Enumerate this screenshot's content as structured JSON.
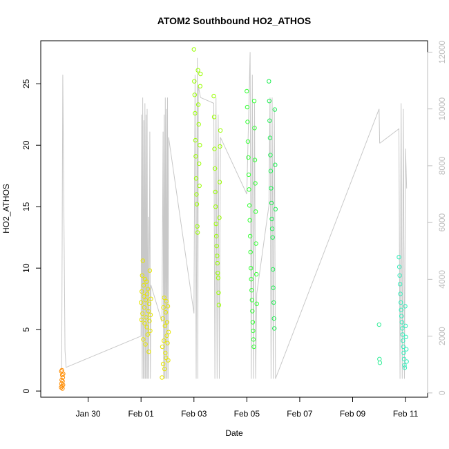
{
  "chart_data": {
    "type": "scatter",
    "title": "ATOM2 Southbound HO2_ATHOS",
    "xlabel": "Date",
    "ylabel": "HO2_ATHOS",
    "xlim": [
      "2016-01-28T05:00",
      "2016-02-11T20:00"
    ],
    "ylim": [
      -0.5,
      28.5
    ],
    "y2lim": [
      -150,
      12400
    ],
    "x_ticks": [
      {
        "label": "Jan 30",
        "date": "2016-01-30"
      },
      {
        "label": "Feb 01",
        "date": "2016-02-01"
      },
      {
        "label": "Feb 03",
        "date": "2016-02-03"
      },
      {
        "label": "Feb 05",
        "date": "2016-02-05"
      },
      {
        "label": "Feb 07",
        "date": "2016-02-07"
      },
      {
        "label": "Feb 09",
        "date": "2016-02-09"
      },
      {
        "label": "Feb 11",
        "date": "2016-02-11"
      }
    ],
    "y_ticks": [
      0,
      5,
      10,
      15,
      20,
      25
    ],
    "y2_ticks": [
      0,
      2000,
      4000,
      6000,
      8000,
      10000,
      12000
    ],
    "grid": false,
    "secondary_series": {
      "color": "#c8c8c8",
      "x": [
        "2016-01-29T00:00",
        "2016-01-29T01:00",
        "2016-01-29T03:00",
        "2016-01-29T04:00",
        "2016-02-01T00:00",
        "2016-02-01T00:30",
        "2016-02-01T01:00",
        "2016-02-01T01:30",
        "2016-02-01T02:00",
        "2016-02-01T02:30",
        "2016-02-01T03:00",
        "2016-02-01T03:30",
        "2016-02-01T04:00",
        "2016-02-01T04:30",
        "2016-02-01T05:00",
        "2016-02-01T05:30",
        "2016-02-01T06:00",
        "2016-02-01T06:30",
        "2016-02-01T07:00",
        "2016-02-01T08:00",
        "2016-02-01T08:30",
        "2016-02-01T09:00",
        "2016-02-01T19:00",
        "2016-02-01T20:00",
        "2016-02-01T20:30",
        "2016-02-01T21:00",
        "2016-02-01T21:30",
        "2016-02-01T22:00",
        "2016-02-01T22:30",
        "2016-02-01T23:00",
        "2016-02-01T23:30",
        "2016-02-02T00:00",
        "2016-02-02T00:30",
        "2016-02-02T01:00",
        "2016-02-03T00:00",
        "2016-02-03T01:00",
        "2016-02-03T02:00",
        "2016-02-03T03:00",
        "2016-02-03T03:30",
        "2016-02-03T04:00",
        "2016-02-03T06:00",
        "2016-02-03T18:00",
        "2016-02-03T19:00",
        "2016-02-03T20:00",
        "2016-02-03T21:00",
        "2016-02-03T22:00",
        "2016-02-03T23:00",
        "2016-02-04T00:00",
        "2016-02-05T00:00",
        "2016-02-05T03:00",
        "2016-02-05T04:00",
        "2016-02-05T05:00",
        "2016-02-05T06:00",
        "2016-02-05T07:00",
        "2016-02-05T08:00",
        "2016-02-05T09:00",
        "2016-02-05T20:00",
        "2016-02-05T21:00",
        "2016-02-05T22:00",
        "2016-02-05T23:00",
        "2016-02-06T00:00",
        "2016-02-06T01:00",
        "2016-02-06T02:00",
        "2016-02-10T00:00",
        "2016-02-10T00:30",
        "2016-02-10T01:00",
        "2016-02-10T18:00",
        "2016-02-10T19:00",
        "2016-02-10T20:00",
        "2016-02-10T21:00",
        "2016-02-10T22:00",
        "2016-02-10T23:00",
        "2016-02-11T00:00",
        "2016-02-11T01:00"
      ],
      "values": [
        800,
        11200,
        1500,
        900,
        2000,
        9800,
        500,
        10400,
        500,
        9600,
        500,
        10200,
        500,
        9800,
        500,
        10000,
        500,
        6200,
        500,
        9200,
        500,
        3800,
        2500,
        9200,
        500,
        9800,
        500,
        10400,
        500,
        10000,
        500,
        10400,
        500,
        9000,
        2800,
        11200,
        500,
        11800,
        500,
        10800,
        10400,
        10200,
        500,
        10400,
        500,
        9800,
        500,
        9000,
        7000,
        12000,
        500,
        11200,
        500,
        10200,
        500,
        3500,
        6600,
        10400,
        500,
        10400,
        500,
        10000,
        500,
        10000,
        8800,
        8800,
        9300,
        500,
        10200,
        500,
        10000,
        500,
        8600,
        7200
      ]
    },
    "series": [
      {
        "color": "#ff8c00",
        "x": [
          "2016-01-28T23:30",
          "2016-01-28T23:40",
          "2016-01-28T23:50",
          "2016-01-29T00:00",
          "2016-01-29T00:10",
          "2016-01-29T00:20",
          "2016-01-29T00:30",
          "2016-01-29T00:40",
          "2016-01-29T00:50",
          "2016-01-29T01:00",
          "2016-01-29T01:10",
          "2016-01-29T01:20"
        ],
        "values": [
          0.3,
          1.6,
          0.6,
          0.9,
          1.7,
          0.4,
          1.3,
          0.2,
          0.8,
          1.1,
          0.5,
          1.4
        ]
      },
      {
        "color": "#e6e600",
        "x": [
          "2016-02-01T00:00",
          "2016-02-01T00:20",
          "2016-02-01T00:40",
          "2016-02-01T01:00",
          "2016-02-01T01:20",
          "2016-02-01T01:40",
          "2016-02-01T02:00",
          "2016-02-01T02:20",
          "2016-02-01T02:40",
          "2016-02-01T03:00",
          "2016-02-01T03:20",
          "2016-02-01T03:40",
          "2016-02-01T04:00",
          "2016-02-01T04:20",
          "2016-02-01T04:40",
          "2016-02-01T05:00",
          "2016-02-01T05:20",
          "2016-02-01T05:40",
          "2016-02-01T06:00",
          "2016-02-01T06:20",
          "2016-02-01T06:40",
          "2016-02-01T07:00",
          "2016-02-01T07:20",
          "2016-02-01T07:40",
          "2016-02-01T08:00",
          "2016-02-01T08:20",
          "2016-02-01T08:40",
          "2016-02-01T09:00",
          "2016-02-01T19:00",
          "2016-02-01T19:20",
          "2016-02-01T19:40",
          "2016-02-01T20:00",
          "2016-02-01T20:20",
          "2016-02-01T20:40",
          "2016-02-01T21:00",
          "2016-02-01T21:20",
          "2016-02-01T21:40",
          "2016-02-01T22:00",
          "2016-02-01T22:20",
          "2016-02-01T22:40",
          "2016-02-01T23:00",
          "2016-02-01T23:20",
          "2016-02-01T23:40",
          "2016-02-02T00:00",
          "2016-02-02T00:20",
          "2016-02-02T00:40",
          "2016-02-02T01:00"
        ],
        "values": [
          7.2,
          5.8,
          8.1,
          9.4,
          6.3,
          10.6,
          4.2,
          8.6,
          7.7,
          6.8,
          5.5,
          9.1,
          3.8,
          7.4,
          6.0,
          8.9,
          5.2,
          7.9,
          4.6,
          8.3,
          6.5,
          3.2,
          7.1,
          5.7,
          9.8,
          4.9,
          6.2,
          7.5,
          1.1,
          3.6,
          5.9,
          2.2,
          6.8,
          4.1,
          7.6,
          1.8,
          5.3,
          3.1,
          6.4,
          2.7,
          7.3,
          4.5,
          5.6,
          3.9,
          6.9,
          2.5,
          4.8
        ]
      },
      {
        "color": "#99ff00",
        "x": [
          "2016-02-03T00:00",
          "2016-02-03T00:20",
          "2016-02-03T00:40",
          "2016-02-03T01:00",
          "2016-02-03T01:20",
          "2016-02-03T01:40",
          "2016-02-03T02:00",
          "2016-02-03T02:20",
          "2016-02-03T02:40",
          "2016-02-03T03:00",
          "2016-02-03T03:20",
          "2016-02-03T03:40",
          "2016-02-03T04:00",
          "2016-02-03T04:20",
          "2016-02-03T04:40",
          "2016-02-03T05:00",
          "2016-02-03T05:20",
          "2016-02-03T05:40",
          "2016-02-03T06:00",
          "2016-02-03T18:00",
          "2016-02-03T18:20",
          "2016-02-03T18:40",
          "2016-02-03T19:00",
          "2016-02-03T19:20",
          "2016-02-03T19:40",
          "2016-02-03T20:00",
          "2016-02-03T20:20",
          "2016-02-03T20:40",
          "2016-02-03T21:00",
          "2016-02-03T21:20",
          "2016-02-03T21:40",
          "2016-02-03T22:00",
          "2016-02-03T22:20",
          "2016-02-03T22:40",
          "2016-02-03T23:00",
          "2016-02-03T23:20",
          "2016-02-03T23:40",
          "2016-02-04T00:00"
        ],
        "values": [
          27.8,
          25.2,
          24.1,
          22.6,
          20.4,
          19.1,
          17.3,
          16.0,
          15.2,
          13.4,
          12.9,
          26.1,
          23.3,
          21.7,
          18.5,
          16.7,
          20.0,
          24.8,
          25.8,
          24.0,
          22.3,
          19.7,
          18.1,
          16.2,
          15.0,
          13.6,
          12.6,
          11.8,
          11.0,
          10.4,
          9.6,
          9.2,
          8.0,
          7.0,
          14.1,
          17.0,
          19.9,
          21.2
        ]
      },
      {
        "color": "#33ff33",
        "x": [
          "2016-02-05T00:00",
          "2016-02-05T00:20",
          "2016-02-05T00:40",
          "2016-02-05T01:00",
          "2016-02-05T01:20",
          "2016-02-05T01:40",
          "2016-02-05T02:00",
          "2016-02-05T02:20",
          "2016-02-05T02:40",
          "2016-02-05T03:00",
          "2016-02-05T03:20",
          "2016-02-05T03:40",
          "2016-02-05T04:00",
          "2016-02-05T04:20",
          "2016-02-05T04:40",
          "2016-02-05T05:00",
          "2016-02-05T05:20",
          "2016-02-05T05:40",
          "2016-02-05T06:00",
          "2016-02-05T06:20",
          "2016-02-05T06:40",
          "2016-02-05T07:00",
          "2016-02-05T07:20",
          "2016-02-05T07:40",
          "2016-02-05T08:00",
          "2016-02-05T08:20",
          "2016-02-05T08:40",
          "2016-02-05T09:00"
        ],
        "values": [
          24.4,
          23.1,
          21.9,
          20.3,
          19.0,
          17.6,
          16.4,
          15.1,
          13.9,
          12.6,
          11.3,
          10.0,
          9.1,
          8.2,
          7.4,
          6.5,
          5.6,
          4.9,
          4.2,
          3.6,
          23.6,
          21.4,
          18.8,
          16.9,
          14.6,
          12.0,
          9.5,
          7.1
        ]
      },
      {
        "color": "#22ee55",
        "x": [
          "2016-02-05T20:00",
          "2016-02-05T20:20",
          "2016-02-05T20:40",
          "2016-02-05T21:00",
          "2016-02-05T21:20",
          "2016-02-05T21:40",
          "2016-02-05T22:00",
          "2016-02-05T22:20",
          "2016-02-05T22:40",
          "2016-02-05T23:00",
          "2016-02-05T23:20",
          "2016-02-05T23:40",
          "2016-02-06T00:00",
          "2016-02-06T00:20",
          "2016-02-06T00:40",
          "2016-02-06T01:00",
          "2016-02-06T01:20",
          "2016-02-06T01:40",
          "2016-02-06T02:00"
        ],
        "values": [
          25.2,
          23.6,
          22.0,
          20.6,
          19.2,
          17.9,
          16.5,
          15.3,
          14.0,
          13.2,
          12.5,
          9.9,
          8.4,
          7.2,
          5.9,
          5.1,
          22.9,
          18.4,
          14.8
        ]
      },
      {
        "color": "#33ee99",
        "x": [
          "2016-02-10T00:00",
          "2016-02-10T00:20",
          "2016-02-10T00:40"
        ],
        "values": [
          5.4,
          2.6,
          2.3
        ]
      },
      {
        "color": "#33eebb",
        "x": [
          "2016-02-10T18:00",
          "2016-02-10T18:20",
          "2016-02-10T18:40",
          "2016-02-10T19:00",
          "2016-02-10T19:20",
          "2016-02-10T19:40",
          "2016-02-10T20:00",
          "2016-02-10T20:20",
          "2016-02-10T20:40",
          "2016-02-10T21:00",
          "2016-02-10T21:20",
          "2016-02-10T21:40",
          "2016-02-10T22:00",
          "2016-02-10T22:20",
          "2016-02-10T22:40",
          "2016-02-10T23:00",
          "2016-02-10T23:20",
          "2016-02-10T23:40",
          "2016-02-11T00:00",
          "2016-02-11T00:20",
          "2016-02-11T00:40",
          "2016-02-11T01:00"
        ],
        "values": [
          10.9,
          10.1,
          9.4,
          8.7,
          7.9,
          7.2,
          6.6,
          6.1,
          5.6,
          5.1,
          4.6,
          4.1,
          3.6,
          3.1,
          2.6,
          2.1,
          1.9,
          6.9,
          5.3,
          4.4,
          3.4,
          2.4
        ]
      }
    ]
  }
}
